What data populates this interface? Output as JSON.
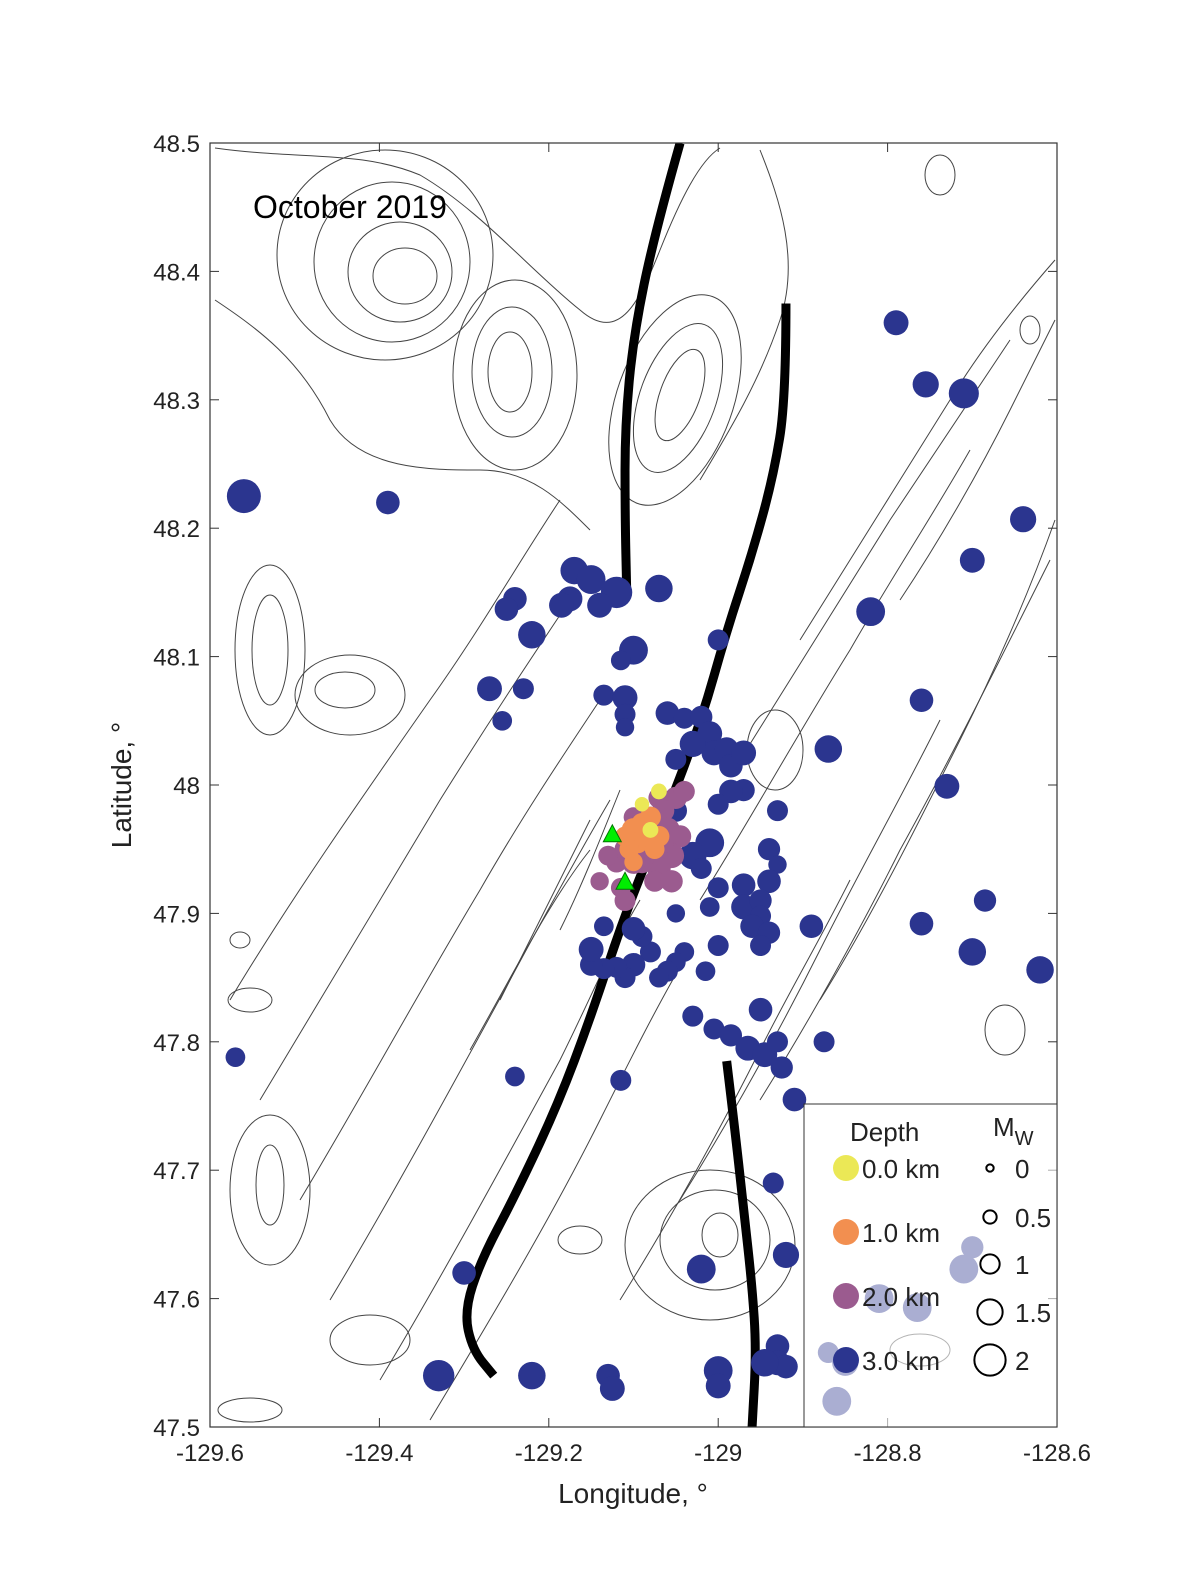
{
  "chart_data": {
    "type": "scatter",
    "title": "",
    "annotation": "October 2019",
    "xlabel": "Longitude, °",
    "ylabel": "Latitude, °",
    "xlim": [
      -129.6,
      -128.6
    ],
    "ylim": [
      47.5,
      48.5
    ],
    "x_ticks": [
      "-129.6",
      "-129.4",
      "-129.2",
      "-129",
      "-128.8",
      "-128.6"
    ],
    "x_tick_values": [
      -129.6,
      -129.4,
      -129.2,
      -129.0,
      -128.8,
      -128.6
    ],
    "y_ticks": [
      "47.5",
      "47.6",
      "47.7",
      "47.8",
      "47.9",
      "48",
      "48.1",
      "48.2",
      "48.3",
      "48.4",
      "48.5"
    ],
    "y_tick_values": [
      47.5,
      47.6,
      47.7,
      47.8,
      47.9,
      48.0,
      48.1,
      48.2,
      48.3,
      48.4,
      48.5
    ],
    "grid": false,
    "background": "bathymetric contour lines",
    "colors": {
      "depth_0": "#ebe856",
      "depth_1": "#f28f50",
      "depth_2": "#9b5b8f",
      "depth_3": "#2b358f",
      "station": "#00ee00",
      "fault": "#000000"
    },
    "legend": {
      "placement": "bottom-right",
      "depth_title": "Depth",
      "depth_entries": [
        {
          "label": "0.0 km",
          "depth_km": 0.0
        },
        {
          "label": "1.0 km",
          "depth_km": 1.0
        },
        {
          "label": "2.0 km",
          "depth_km": 2.0
        },
        {
          "label": "3.0 km",
          "depth_km": 3.0
        }
      ],
      "mag_title": "M",
      "mag_subscript": "W",
      "mag_entries": [
        {
          "label": "0",
          "mw": 0
        },
        {
          "label": "0.5",
          "mw": 0.5
        },
        {
          "label": "1",
          "mw": 1
        },
        {
          "label": "1.5",
          "mw": 1.5
        },
        {
          "label": "2",
          "mw": 2
        }
      ]
    },
    "faults": [
      {
        "name": "",
        "points": [
          [
            -129.045,
            48.5
          ],
          [
            -129.075,
            48.43
          ],
          [
            -129.1,
            48.35
          ],
          [
            -129.11,
            48.28
          ],
          [
            -129.11,
            48.21
          ],
          [
            -129.108,
            48.15
          ]
        ]
      },
      {
        "name": "",
        "points": [
          [
            -128.92,
            48.375
          ],
          [
            -128.92,
            48.3
          ],
          [
            -128.935,
            48.24
          ],
          [
            -128.96,
            48.18
          ],
          [
            -128.99,
            48.12
          ],
          [
            -129.02,
            48.05
          ],
          [
            -129.06,
            47.98
          ],
          [
            -129.11,
            47.9
          ],
          [
            -129.15,
            47.82
          ],
          [
            -129.19,
            47.75
          ],
          [
            -129.24,
            47.68
          ],
          [
            -129.28,
            47.63
          ],
          [
            -129.3,
            47.59
          ],
          [
            -129.29,
            47.56
          ],
          [
            -129.265,
            47.54
          ]
        ]
      },
      {
        "name": "",
        "points": [
          [
            -128.99,
            47.785
          ],
          [
            -128.98,
            47.73
          ],
          [
            -128.97,
            47.67
          ],
          [
            -128.96,
            47.61
          ],
          [
            -128.955,
            47.56
          ],
          [
            -128.96,
            47.5
          ]
        ]
      }
    ],
    "stations": [
      {
        "lon": -129.125,
        "lat": 47.962
      },
      {
        "lon": -129.11,
        "lat": 47.925
      }
    ],
    "series": [
      {
        "depth_km": 3.0,
        "points": [
          [
            -129.56,
            48.225,
            2.0
          ],
          [
            -129.39,
            48.22,
            1.2
          ],
          [
            -129.17,
            48.167,
            1.5
          ],
          [
            -129.175,
            48.145,
            1.3
          ],
          [
            -129.15,
            48.16,
            1.6
          ],
          [
            -129.12,
            48.15,
            1.8
          ],
          [
            -129.14,
            48.14,
            1.3
          ],
          [
            -129.185,
            48.14,
            1.3
          ],
          [
            -129.24,
            48.145,
            1.2
          ],
          [
            -129.25,
            48.137,
            1.2
          ],
          [
            -129.07,
            48.153,
            1.5
          ],
          [
            -129.1,
            48.105,
            1.6
          ],
          [
            -129.22,
            48.117,
            1.5
          ],
          [
            -129.115,
            48.097,
            0.9
          ],
          [
            -129.0,
            48.113,
            1.0
          ],
          [
            -129.27,
            48.075,
            1.3
          ],
          [
            -129.23,
            48.075,
            1.0
          ],
          [
            -129.255,
            48.05,
            0.9
          ],
          [
            -129.135,
            48.07,
            1.0
          ],
          [
            -129.11,
            48.068,
            1.3
          ],
          [
            -129.11,
            48.055,
            1.0
          ],
          [
            -129.11,
            48.045,
            0.8
          ],
          [
            -129.06,
            48.056,
            1.2
          ],
          [
            -129.04,
            48.052,
            1.0
          ],
          [
            -129.02,
            48.053,
            1.1
          ],
          [
            -129.01,
            48.04,
            1.3
          ],
          [
            -129.005,
            48.025,
            1.3
          ],
          [
            -128.99,
            48.028,
            1.2
          ],
          [
            -128.985,
            48.015,
            1.2
          ],
          [
            -129.03,
            48.032,
            1.4
          ],
          [
            -129.05,
            48.02,
            1.0
          ],
          [
            -128.97,
            48.025,
            1.3
          ],
          [
            -128.97,
            47.996,
            1.1
          ],
          [
            -128.985,
            47.995,
            1.2
          ],
          [
            -129.0,
            47.985,
            1.0
          ],
          [
            -128.87,
            48.028,
            1.5
          ],
          [
            -128.79,
            48.36,
            1.3
          ],
          [
            -128.755,
            48.312,
            1.4
          ],
          [
            -128.71,
            48.305,
            1.7
          ],
          [
            -128.64,
            48.207,
            1.4
          ],
          [
            -128.7,
            48.175,
            1.3
          ],
          [
            -128.82,
            48.135,
            1.6
          ],
          [
            -128.76,
            48.066,
            1.2
          ],
          [
            -128.73,
            47.999,
            1.3
          ],
          [
            -128.93,
            47.98,
            1.0
          ],
          [
            -128.94,
            47.95,
            1.1
          ],
          [
            -128.93,
            47.938,
            0.8
          ],
          [
            -128.94,
            47.925,
            1.2
          ],
          [
            -128.97,
            47.922,
            1.2
          ],
          [
            -128.97,
            47.905,
            1.3
          ],
          [
            -128.95,
            47.91,
            1.1
          ],
          [
            -128.95,
            47.898,
            1.0
          ],
          [
            -128.96,
            47.89,
            1.2
          ],
          [
            -128.94,
            47.885,
            1.1
          ],
          [
            -128.95,
            47.875,
            1.0
          ],
          [
            -128.89,
            47.89,
            1.2
          ],
          [
            -128.76,
            47.892,
            1.2
          ],
          [
            -128.685,
            47.91,
            1.1
          ],
          [
            -128.7,
            47.87,
            1.5
          ],
          [
            -128.62,
            47.856,
            1.5
          ],
          [
            -129.01,
            47.955,
            1.6
          ],
          [
            -129.03,
            47.945,
            1.5
          ],
          [
            -129.06,
            47.96,
            1.4
          ],
          [
            -129.05,
            47.98,
            1.1
          ],
          [
            -129.02,
            47.935,
            1.0
          ],
          [
            -129.0,
            47.92,
            1.0
          ],
          [
            -129.01,
            47.905,
            0.9
          ],
          [
            -129.04,
            47.87,
            0.9
          ],
          [
            -129.05,
            47.862,
            0.9
          ],
          [
            -129.06,
            47.855,
            1.0
          ],
          [
            -129.07,
            47.85,
            0.9
          ],
          [
            -129.08,
            47.87,
            1.0
          ],
          [
            -129.09,
            47.882,
            1.0
          ],
          [
            -129.1,
            47.888,
            1.2
          ],
          [
            -129.05,
            47.9,
            0.8
          ],
          [
            -129.1,
            47.86,
            1.2
          ],
          [
            -129.11,
            47.85,
            1.0
          ],
          [
            -129.12,
            47.858,
            1.0
          ],
          [
            -129.135,
            47.857,
            1.0
          ],
          [
            -129.15,
            47.86,
            1.1
          ],
          [
            -129.15,
            47.872,
            1.3
          ],
          [
            -129.135,
            47.89,
            0.9
          ],
          [
            -129.0,
            47.875,
            1.0
          ],
          [
            -129.015,
            47.855,
            0.9
          ],
          [
            -128.95,
            47.825,
            1.2
          ],
          [
            -129.03,
            47.82,
            1.0
          ],
          [
            -129.005,
            47.81,
            1.0
          ],
          [
            -128.985,
            47.805,
            1.1
          ],
          [
            -128.965,
            47.795,
            1.3
          ],
          [
            -128.945,
            47.79,
            1.3
          ],
          [
            -128.93,
            47.8,
            1.0
          ],
          [
            -128.875,
            47.8,
            1.0
          ],
          [
            -128.925,
            47.78,
            1.1
          ],
          [
            -128.91,
            47.755,
            1.2
          ],
          [
            -129.115,
            47.77,
            1.0
          ],
          [
            -129.24,
            47.773,
            0.9
          ],
          [
            -129.57,
            47.788,
            0.9
          ],
          [
            -128.935,
            47.69,
            1.0
          ],
          [
            -128.92,
            47.634,
            1.4
          ],
          [
            -128.7,
            47.64,
            1.1
          ],
          [
            -128.71,
            47.623,
            1.6
          ],
          [
            -128.81,
            47.6,
            1.6
          ],
          [
            -128.765,
            47.593,
            1.6
          ],
          [
            -129.02,
            47.623,
            1.6
          ],
          [
            -129.3,
            47.62,
            1.2
          ],
          [
            -128.93,
            47.563,
            1.2
          ],
          [
            -128.93,
            47.55,
            1.3
          ],
          [
            -128.92,
            47.547,
            1.2
          ],
          [
            -128.87,
            47.558,
            1.0
          ],
          [
            -128.85,
            47.55,
            1.4
          ],
          [
            -128.945,
            47.55,
            1.5
          ],
          [
            -128.86,
            47.52,
            1.6
          ],
          [
            -129.33,
            47.54,
            1.8
          ],
          [
            -129.22,
            47.54,
            1.5
          ],
          [
            -129.13,
            47.54,
            1.2
          ],
          [
            -129.125,
            47.53,
            1.3
          ],
          [
            -129.0,
            47.544,
            1.6
          ],
          [
            -129.0,
            47.532,
            1.3
          ]
        ]
      },
      {
        "depth_km": 2.0,
        "points": [
          [
            -129.07,
            47.99,
            1.0
          ],
          [
            -129.05,
            47.99,
            1.1
          ],
          [
            -129.04,
            47.995,
            1.0
          ],
          [
            -129.065,
            47.98,
            1.1
          ],
          [
            -129.08,
            47.975,
            1.0
          ],
          [
            -129.06,
            47.965,
            1.3
          ],
          [
            -129.045,
            47.96,
            1.1
          ],
          [
            -129.09,
            47.96,
            1.2
          ],
          [
            -129.1,
            47.965,
            1.0
          ],
          [
            -129.08,
            47.95,
            1.2
          ],
          [
            -129.055,
            47.945,
            1.3
          ],
          [
            -129.07,
            47.935,
            1.2
          ],
          [
            -129.09,
            47.94,
            1.1
          ],
          [
            -129.1,
            47.94,
            1.2
          ],
          [
            -129.075,
            47.925,
            1.0
          ],
          [
            -129.055,
            47.925,
            1.1
          ],
          [
            -129.11,
            47.95,
            1.0
          ],
          [
            -129.12,
            47.94,
            1.0
          ],
          [
            -129.13,
            47.945,
            0.9
          ],
          [
            -129.115,
            47.92,
            0.9
          ],
          [
            -129.11,
            47.91,
            1.0
          ],
          [
            -129.14,
            47.925,
            0.8
          ],
          [
            -129.065,
            47.955,
            1.0
          ],
          [
            -129.1,
            47.975,
            0.9
          ]
        ]
      },
      {
        "depth_km": 1.0,
        "points": [
          [
            -129.08,
            47.975,
            1.0
          ],
          [
            -129.09,
            47.97,
            1.0
          ],
          [
            -129.1,
            47.965,
            1.2
          ],
          [
            -129.085,
            47.96,
            1.1
          ],
          [
            -129.07,
            47.96,
            1.0
          ],
          [
            -129.095,
            47.955,
            1.0
          ],
          [
            -129.105,
            47.95,
            0.9
          ],
          [
            -129.075,
            47.95,
            0.9
          ],
          [
            -129.11,
            47.96,
            0.9
          ],
          [
            -129.1,
            47.94,
            0.8
          ]
        ]
      },
      {
        "depth_km": 0.0,
        "points": [
          [
            -129.07,
            47.995,
            0.6
          ],
          [
            -129.09,
            47.985,
            0.5
          ],
          [
            -129.08,
            47.965,
            0.6
          ]
        ]
      }
    ]
  }
}
